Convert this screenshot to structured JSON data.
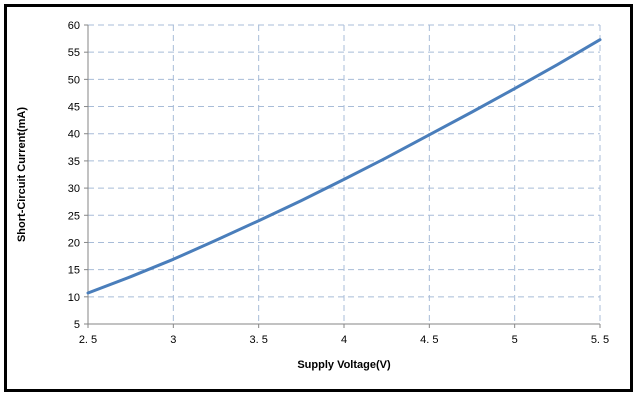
{
  "chart_data": {
    "type": "line",
    "title": "",
    "xlabel": "Supply Voltage(V)",
    "ylabel": "Short-Circuit Current(mA)",
    "xlim": [
      2.5,
      5.5
    ],
    "ylim": [
      5,
      60
    ],
    "x_ticks": [
      2.5,
      3,
      3.5,
      4,
      4.5,
      5,
      5.5
    ],
    "x_tick_labels": [
      "2. 5",
      "3",
      "3. 5",
      "4",
      "4. 5",
      "5",
      "5. 5"
    ],
    "y_ticks": [
      5,
      10,
      15,
      20,
      25,
      30,
      35,
      40,
      45,
      50,
      55,
      60
    ],
    "y_tick_labels": [
      "5",
      "10",
      "15",
      "20",
      "25",
      "30",
      "35",
      "40",
      "45",
      "50",
      "55",
      "60"
    ],
    "grid": true,
    "legend": "none",
    "series": [
      {
        "color": "#4a7ebb",
        "x": [
          2.5,
          2.75,
          3.0,
          3.25,
          3.5,
          3.75,
          4.0,
          4.25,
          4.5,
          4.75,
          5.0,
          5.25,
          5.5
        ],
        "y": [
          10.7,
          13.7,
          16.9,
          20.4,
          24.0,
          27.7,
          31.6,
          35.6,
          39.8,
          44.0,
          48.3,
          52.7,
          57.3
        ]
      }
    ]
  }
}
